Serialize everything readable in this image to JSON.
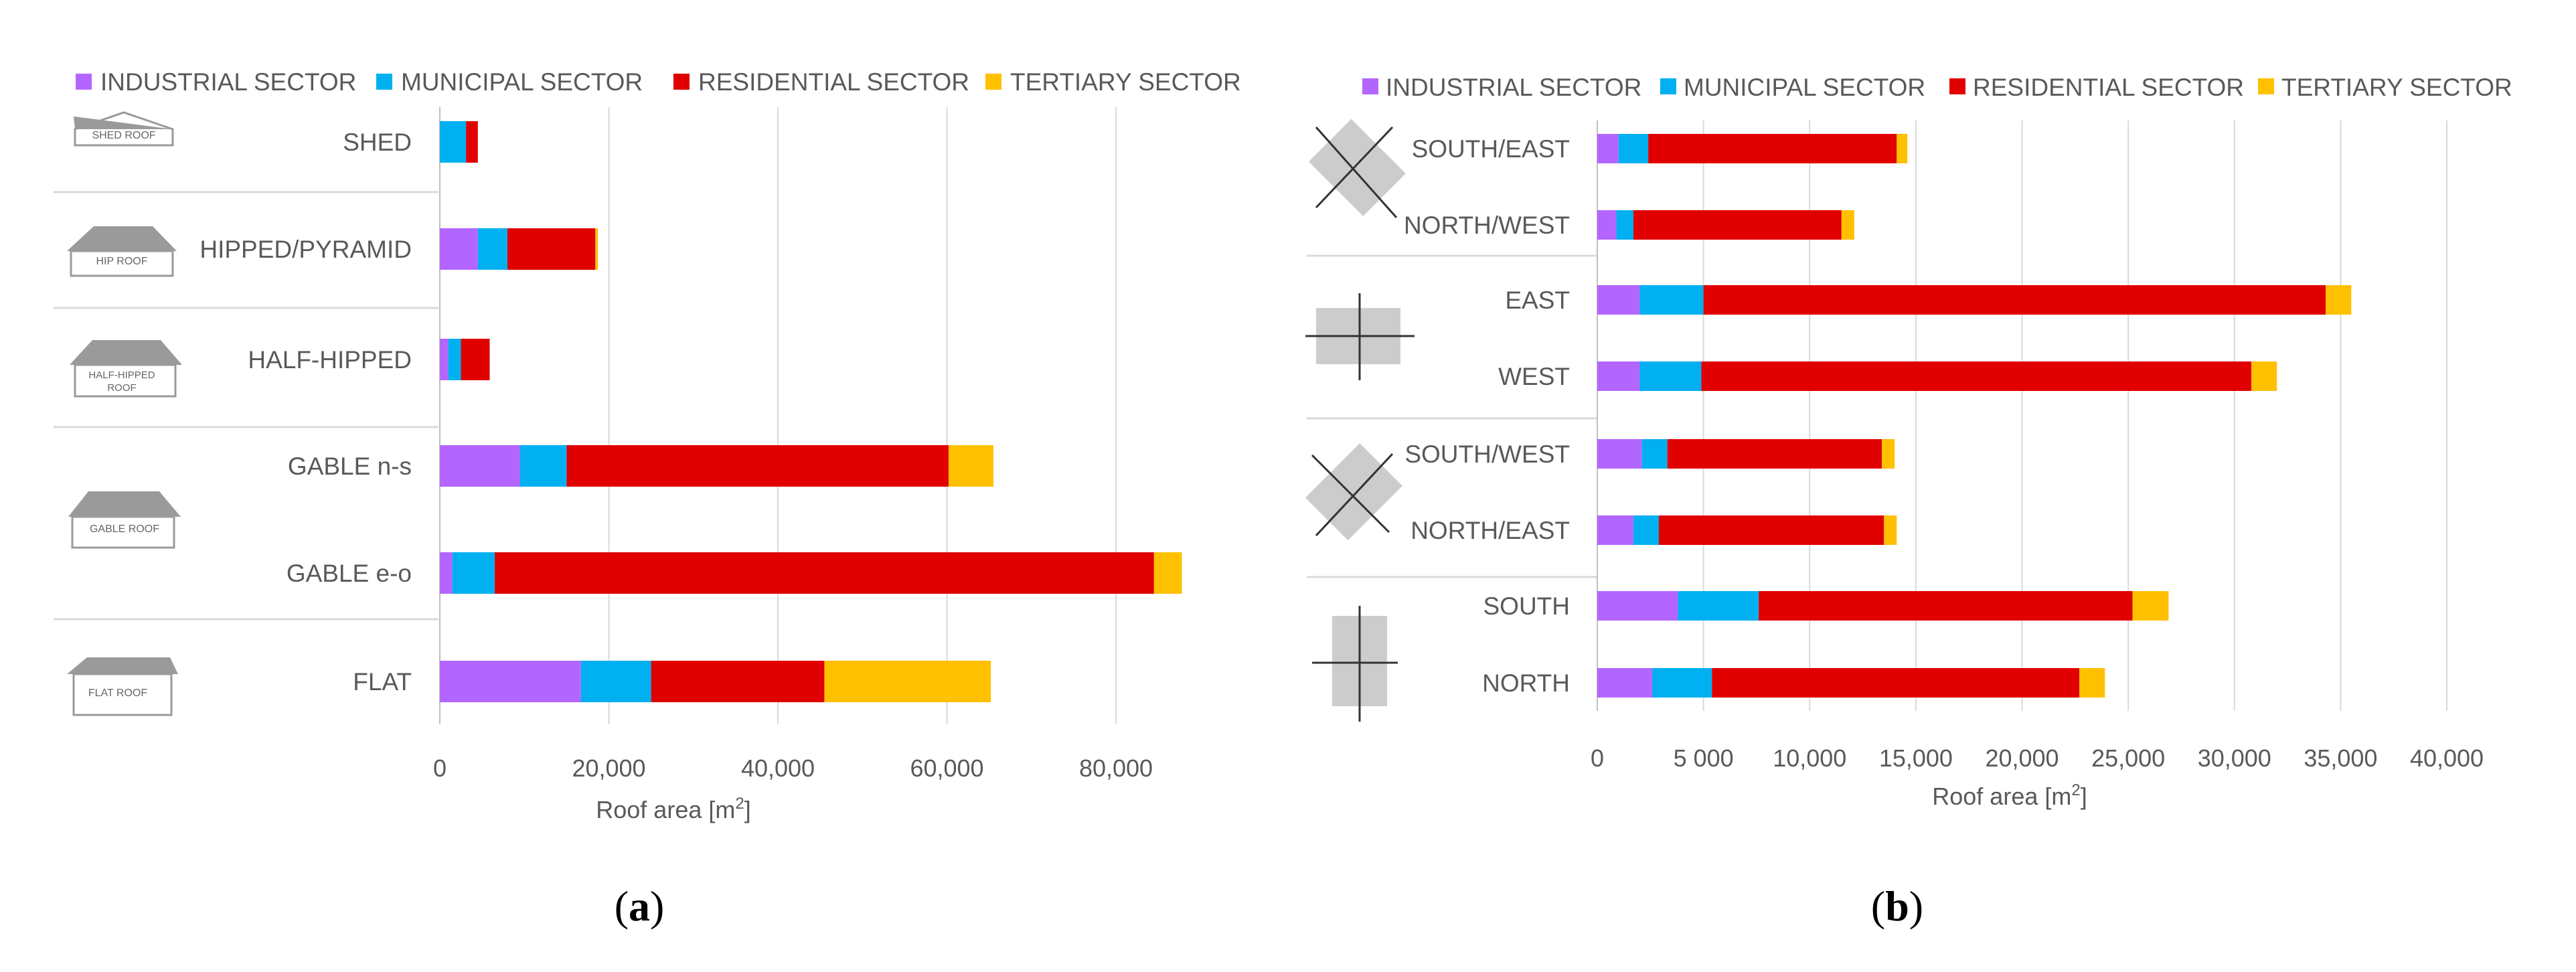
{
  "colors": {
    "industrial": "#b366ff",
    "municipal": "#00b0f0",
    "residential": "#e00000",
    "tertiary": "#ffc000",
    "grid": "#d9d9d9",
    "text": "#595959",
    "icon": "#cccccc"
  },
  "legend": [
    {
      "key": "industrial",
      "label": "INDUSTRIAL SECTOR"
    },
    {
      "key": "municipal",
      "label": "MUNICIPAL SECTOR"
    },
    {
      "key": "residential",
      "label": "RESIDENTIAL SECTOR"
    },
    {
      "key": "tertiary",
      "label": "TERTIARY SECTOR"
    }
  ],
  "icon_labels": {
    "shed": "SHED ROOF",
    "hip": "HIP ROOF",
    "half_hipped_line1": "HALF-HIPPED",
    "half_hipped_line2": "ROOF",
    "gable": "GABLE ROOF",
    "flat": "FLAT ROOF"
  },
  "chart_data": [
    {
      "id": "a",
      "type": "bar",
      "orientation": "horizontal",
      "stacked": true,
      "caption": "a",
      "xlabel": "Roof area [m",
      "xlabel_sup": "2",
      "xlabel_end": "]",
      "xlim": [
        0,
        88000
      ],
      "xticks": [
        0,
        20000,
        40000,
        60000,
        80000
      ],
      "xtick_labels": [
        "0",
        "20,000",
        "40,000",
        "60,000",
        "80,000"
      ],
      "legend_position": "top",
      "categories": [
        "SHED",
        "HIPPED/PYRAMID",
        "HALF-HIPPED",
        "GABLE n-s",
        "GABLE e-o",
        "FLAT"
      ],
      "series": [
        {
          "name": "INDUSTRIAL SECTOR",
          "key": "industrial",
          "values": [
            0,
            4500,
            1000,
            9500,
            1500,
            16700
          ]
        },
        {
          "name": "MUNICIPAL SECTOR",
          "key": "municipal",
          "values": [
            3100,
            3500,
            1500,
            5500,
            5000,
            8300
          ]
        },
        {
          "name": "RESIDENTIAL SECTOR",
          "key": "residential",
          "values": [
            1400,
            10400,
            3400,
            45200,
            78000,
            20500
          ]
        },
        {
          "name": "TERTIARY SECTOR",
          "key": "tertiary",
          "values": [
            0,
            300,
            0,
            5300,
            3300,
            19700
          ]
        }
      ]
    },
    {
      "id": "b",
      "type": "bar",
      "orientation": "horizontal",
      "stacked": true,
      "caption": "b",
      "xlabel": "Roof area [m",
      "xlabel_sup": "2",
      "xlabel_end": "]",
      "xlim": [
        0,
        40000
      ],
      "xticks": [
        0,
        5000,
        10000,
        15000,
        20000,
        25000,
        30000,
        35000,
        40000
      ],
      "xtick_labels": [
        "0",
        "5 000",
        "10,000",
        "15,000",
        "20,000",
        "25,000",
        "30,000",
        "35,000",
        "40,000"
      ],
      "legend_position": "top",
      "categories": [
        "SOUTH/EAST",
        "NORTH/WEST",
        "EAST",
        "WEST",
        "SOUTH/WEST",
        "NORTH/EAST",
        "SOUTH",
        "NORTH"
      ],
      "series": [
        {
          "name": "INDUSTRIAL SECTOR",
          "key": "industrial",
          "values": [
            1000,
            900,
            2000,
            2000,
            2100,
            1700,
            3800,
            2600
          ]
        },
        {
          "name": "MUNICIPAL SECTOR",
          "key": "municipal",
          "values": [
            1400,
            800,
            3000,
            2900,
            1200,
            1200,
            3800,
            2800
          ]
        },
        {
          "name": "RESIDENTIAL SECTOR",
          "key": "residential",
          "values": [
            11700,
            9800,
            29300,
            25900,
            10100,
            10600,
            17600,
            17300
          ]
        },
        {
          "name": "TERTIARY SECTOR",
          "key": "tertiary",
          "values": [
            500,
            600,
            1200,
            1200,
            600,
            600,
            1700,
            1200
          ]
        }
      ]
    }
  ]
}
